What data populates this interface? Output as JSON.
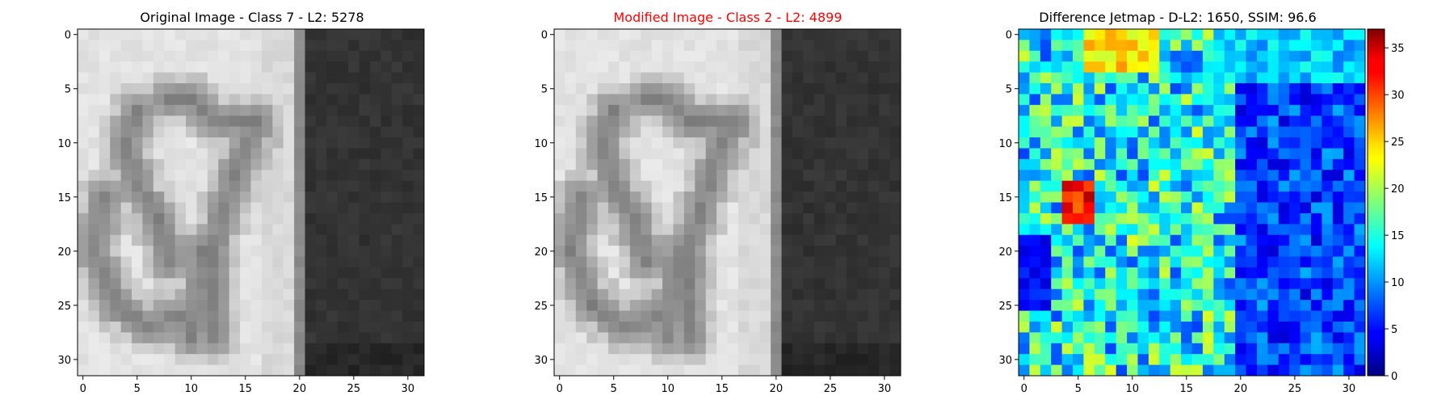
{
  "chart_data": [
    {
      "type": "heatmap",
      "title": "Original Image - Class 7 - L2: 5278",
      "title_color": "#000000",
      "colormap": "gray",
      "rows": 32,
      "cols": 32,
      "xticks": [
        0,
        5,
        10,
        15,
        20,
        25,
        30
      ],
      "yticks": [
        0,
        5,
        10,
        15,
        20,
        25,
        30
      ],
      "xlim": [
        -0.5,
        31.5
      ],
      "ylim": [
        31.5,
        -0.5
      ],
      "grid": false
    },
    {
      "type": "heatmap",
      "title": "Modified Image - Class 2 - L2: 4899",
      "title_color": "#ff0000",
      "colormap": "gray",
      "rows": 32,
      "cols": 32,
      "xticks": [
        0,
        5,
        10,
        15,
        20,
        25,
        30
      ],
      "yticks": [
        0,
        5,
        10,
        15,
        20,
        25,
        30
      ],
      "xlim": [
        -0.5,
        31.5
      ],
      "ylim": [
        31.5,
        -0.5
      ],
      "grid": false
    },
    {
      "type": "heatmap",
      "title": "Difference Jetmap - D-L2: 1650, SSIM: 96.6",
      "title_color": "#000000",
      "colormap": "jet",
      "rows": 32,
      "cols": 32,
      "xticks": [
        0,
        5,
        10,
        15,
        20,
        25,
        30
      ],
      "yticks": [
        0,
        5,
        10,
        15,
        20,
        25,
        30
      ],
      "xlim": [
        -0.5,
        31.5
      ],
      "ylim": [
        31.5,
        -0.5
      ],
      "grid": false,
      "colorbar": {
        "range": [
          0,
          37
        ],
        "ticks": [
          0,
          5,
          10,
          15,
          20,
          25,
          30,
          35
        ],
        "placement": "right"
      }
    }
  ]
}
